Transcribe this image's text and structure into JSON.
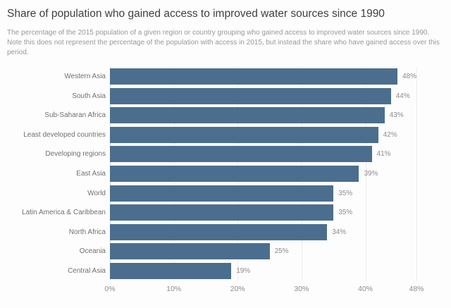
{
  "page": {
    "title": "Share of population who gained access to improved water sources since 1990",
    "subtitle": "The percentage of the 2015 population of a given region or country grouping who gained access to improved water sources since 1990. Note this does not represent the percentage of the population with access in 2015, but instead the share who have gained access over this period."
  },
  "chart_data": {
    "type": "bar",
    "orientation": "horizontal",
    "title": "Share of population who gained access to improved water sources since 1990",
    "xlabel": "",
    "ylabel": "",
    "categories": [
      "Western Asia",
      "South Asia",
      "Sub-Saharan Africa",
      "Least developed countries",
      "Developing regions",
      "East Asia",
      "World",
      "Latin America & Caribbean",
      "North Africa",
      "Oceania",
      "Central Asia"
    ],
    "values": [
      48,
      44,
      43,
      42,
      41,
      39,
      35,
      35,
      34,
      25,
      19
    ],
    "value_labels": [
      "48%",
      "44%",
      "43%",
      "42%",
      "41%",
      "39%",
      "35%",
      "35%",
      "34%",
      "25%",
      "19%"
    ],
    "xlim": [
      0,
      48
    ],
    "x_ticks": [
      {
        "value": 0,
        "label": "0%"
      },
      {
        "value": 10,
        "label": "10%"
      },
      {
        "value": 20,
        "label": "20%"
      },
      {
        "value": 30,
        "label": "30%"
      },
      {
        "value": 40,
        "label": "40%"
      },
      {
        "value": 48,
        "label": "48%"
      }
    ],
    "grid": "vertical-dotted",
    "legend": "none",
    "colors": {
      "bar": "#4b6e8e",
      "grid_line": "#dedede",
      "zero_axis": "#d4d4d4",
      "title_text": "#3e3e3e",
      "subtitle_text": "#999999",
      "category_label": "#707070",
      "value_label": "#8c8c8c",
      "tick_label": "#8c8c8c",
      "background": "#fdfdfd"
    }
  }
}
